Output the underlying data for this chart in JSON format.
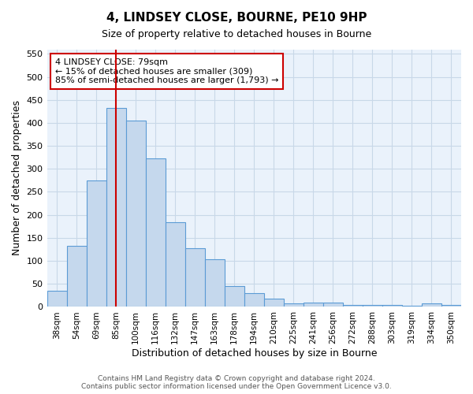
{
  "title": "4, LINDSEY CLOSE, BOURNE, PE10 9HP",
  "subtitle": "Size of property relative to detached houses in Bourne",
  "xlabel": "Distribution of detached houses by size in Bourne",
  "ylabel": "Number of detached properties",
  "categories": [
    "38sqm",
    "54sqm",
    "69sqm",
    "85sqm",
    "100sqm",
    "116sqm",
    "132sqm",
    "147sqm",
    "163sqm",
    "178sqm",
    "194sqm",
    "210sqm",
    "225sqm",
    "241sqm",
    "256sqm",
    "272sqm",
    "288sqm",
    "303sqm",
    "319sqm",
    "334sqm",
    "350sqm"
  ],
  "values": [
    35,
    133,
    275,
    432,
    405,
    322,
    184,
    127,
    103,
    46,
    30,
    18,
    7,
    9,
    9,
    5,
    5,
    5,
    3,
    7,
    5
  ],
  "bar_color": "#c5d8ed",
  "bar_edge_color": "#5b9bd5",
  "vline_color": "#cc0000",
  "vline_pos": 3.0,
  "annotation_text": "4 LINDSEY CLOSE: 79sqm\n← 15% of detached houses are smaller (309)\n85% of semi-detached houses are larger (1,793) →",
  "annotation_box_color": "#ffffff",
  "annotation_box_edge_color": "#cc0000",
  "footer_text": "Contains HM Land Registry data © Crown copyright and database right 2024.\nContains public sector information licensed under the Open Government Licence v3.0.",
  "bg_color": "#ffffff",
  "ax_bg_color": "#eaf2fb",
  "grid_color": "#c8d8e8",
  "ylim": [
    0,
    560
  ],
  "yticks": [
    0,
    50,
    100,
    150,
    200,
    250,
    300,
    350,
    400,
    450,
    500,
    550
  ]
}
